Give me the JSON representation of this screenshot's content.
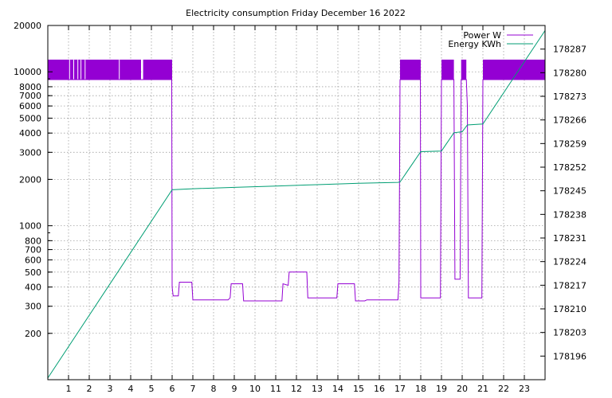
{
  "chart_data": {
    "type": "line",
    "title": "Electricity consumption Friday December 16 2022",
    "xlim": [
      0,
      24
    ],
    "x_ticks": [
      1,
      2,
      3,
      4,
      5,
      6,
      7,
      8,
      9,
      10,
      11,
      12,
      13,
      14,
      15,
      16,
      17,
      18,
      19,
      20,
      21,
      22,
      23
    ],
    "y_left": {
      "scale": "log",
      "lim": [
        100,
        20000
      ],
      "ticks": [
        200,
        300,
        400,
        500,
        600,
        700,
        800,
        1000,
        2000,
        3000,
        4000,
        5000,
        6000,
        7000,
        8000,
        10000,
        20000
      ]
    },
    "y_right": {
      "scale": "linear",
      "lim": [
        178189,
        178294
      ],
      "ticks": [
        178196,
        178203,
        178210,
        178217,
        178224,
        178231,
        178238,
        178245,
        178252,
        178259,
        178266,
        178273,
        178280,
        178287
      ]
    },
    "legend_position": "top-right",
    "series": [
      {
        "name": "Power W",
        "axis": "left",
        "color": "#9400d3",
        "rapid_switching_bands": [
          [
            0,
            4.5
          ],
          [
            4.6,
            6.0
          ],
          [
            17.0,
            18.0
          ],
          [
            19.0,
            19.6
          ],
          [
            19.95,
            20.2
          ],
          [
            21.0,
            24.0
          ]
        ],
        "band_range": [
          8900,
          12000
        ],
        "points": [
          [
            0,
            8900
          ],
          [
            5.98,
            8900
          ],
          [
            6.0,
            400
          ],
          [
            6.05,
            350
          ],
          [
            6.3,
            350
          ],
          [
            6.35,
            430
          ],
          [
            6.95,
            430
          ],
          [
            7.0,
            330
          ],
          [
            8.7,
            330
          ],
          [
            8.8,
            340
          ],
          [
            8.85,
            420
          ],
          [
            9.4,
            420
          ],
          [
            9.45,
            325
          ],
          [
            11.3,
            325
          ],
          [
            11.35,
            420
          ],
          [
            11.6,
            410
          ],
          [
            11.65,
            500
          ],
          [
            12.5,
            500
          ],
          [
            12.55,
            340
          ],
          [
            13.95,
            340
          ],
          [
            14.0,
            420
          ],
          [
            14.8,
            420
          ],
          [
            14.85,
            325
          ],
          [
            15.3,
            325
          ],
          [
            15.4,
            330
          ],
          [
            15.9,
            330
          ],
          [
            16.9,
            330
          ],
          [
            16.95,
            430
          ],
          [
            17.0,
            8900
          ],
          [
            17.98,
            8900
          ],
          [
            18.0,
            340
          ],
          [
            18.95,
            340
          ],
          [
            19.0,
            8900
          ],
          [
            19.6,
            8900
          ],
          [
            19.65,
            450
          ],
          [
            19.9,
            450
          ],
          [
            19.95,
            8900
          ],
          [
            20.2,
            8900
          ],
          [
            20.25,
            6000
          ],
          [
            20.3,
            340
          ],
          [
            20.95,
            340
          ],
          [
            21.0,
            8900
          ],
          [
            24.0,
            8900
          ]
        ]
      },
      {
        "name": "Energy KWh",
        "axis": "right",
        "color": "#009e73",
        "points": [
          [
            0,
            178189.5
          ],
          [
            6.0,
            178245.3
          ],
          [
            7.0,
            178245.6
          ],
          [
            9.0,
            178246.0
          ],
          [
            11.0,
            178246.4
          ],
          [
            13.0,
            178246.8
          ],
          [
            15.0,
            178247.2
          ],
          [
            16.9,
            178247.5
          ],
          [
            17.0,
            178247.6
          ],
          [
            18.0,
            178256.6
          ],
          [
            19.0,
            178256.8
          ],
          [
            19.6,
            178262.2
          ],
          [
            20.0,
            178262.5
          ],
          [
            20.25,
            178264.5
          ],
          [
            21.0,
            178264.8
          ],
          [
            24.0,
            178292.5
          ]
        ]
      }
    ]
  }
}
